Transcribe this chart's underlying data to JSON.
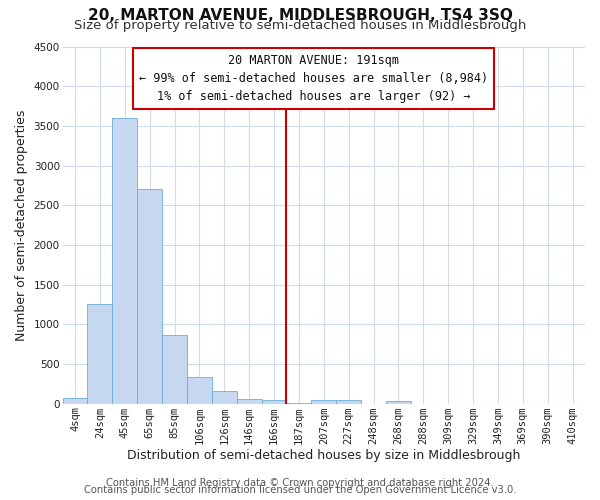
{
  "title": "20, MARTON AVENUE, MIDDLESBROUGH, TS4 3SQ",
  "subtitle": "Size of property relative to semi-detached houses in Middlesbrough",
  "xlabel": "Distribution of semi-detached houses by size in Middlesbrough",
  "ylabel": "Number of semi-detached properties",
  "footer_line1": "Contains HM Land Registry data © Crown copyright and database right 2024.",
  "footer_line2": "Contains public sector information licensed under the Open Government Licence v3.0.",
  "bar_labels": [
    "4sqm",
    "24sqm",
    "45sqm",
    "65sqm",
    "85sqm",
    "106sqm",
    "126sqm",
    "146sqm",
    "166sqm",
    "187sqm",
    "207sqm",
    "227sqm",
    "248sqm",
    "268sqm",
    "288sqm",
    "309sqm",
    "329sqm",
    "349sqm",
    "369sqm",
    "390sqm",
    "410sqm"
  ],
  "bar_values": [
    75,
    1250,
    3600,
    2700,
    860,
    330,
    165,
    60,
    40,
    5,
    45,
    40,
    0,
    30,
    0,
    0,
    0,
    0,
    0,
    0,
    0
  ],
  "bar_color": "#c5d8f0",
  "bar_edge_color": "#6baed6",
  "vline_index": 9,
  "annotation_title": "20 MARTON AVENUE: 191sqm",
  "annotation_line1": "← 99% of semi-detached houses are smaller (8,984)",
  "annotation_line2": "1% of semi-detached houses are larger (92) →",
  "ylim": [
    0,
    4500
  ],
  "yticks": [
    0,
    500,
    1000,
    1500,
    2000,
    2500,
    3000,
    3500,
    4000,
    4500
  ],
  "background_color": "#ffffff",
  "grid_color": "#d0dcea",
  "vline_color": "#cc0000",
  "title_fontsize": 11,
  "subtitle_fontsize": 9.5,
  "axis_label_fontsize": 9,
  "tick_fontsize": 7.5,
  "footer_fontsize": 7.2
}
